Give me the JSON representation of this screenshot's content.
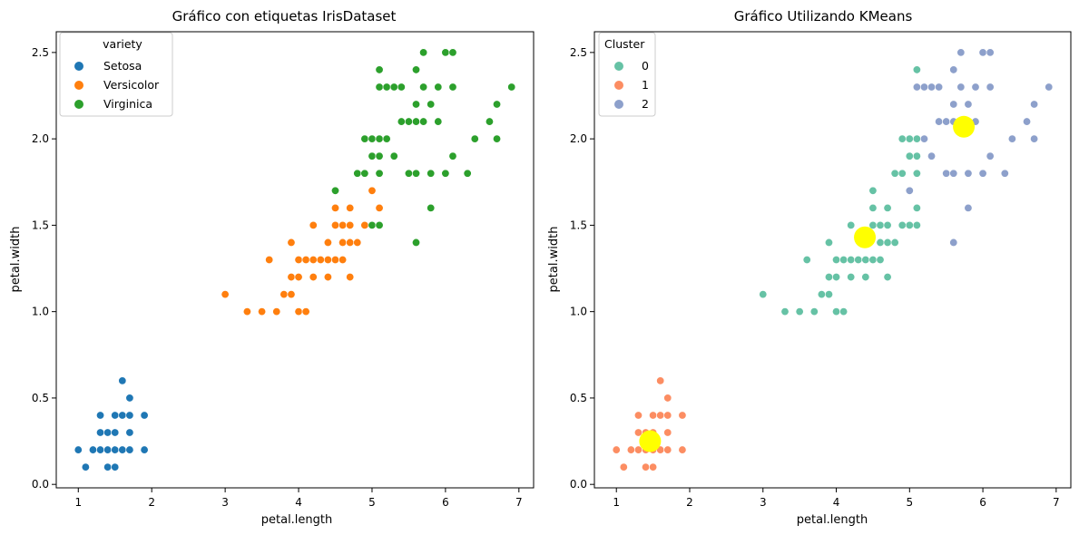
{
  "chart_data": [
    {
      "type": "scatter",
      "title": "Gráfico con etiquetas IrisDataset",
      "xlabel": "petal.length",
      "ylabel": "petal.width",
      "xlim": [
        0.7,
        7.2
      ],
      "ylim": [
        -0.02,
        2.62
      ],
      "xticks": [
        1,
        2,
        3,
        4,
        5,
        6,
        7
      ],
      "yticks": [
        0.0,
        0.5,
        1.0,
        1.5,
        2.0,
        2.5
      ],
      "xtick_labels": [
        "1",
        "2",
        "3",
        "4",
        "5",
        "6",
        "7"
      ],
      "ytick_labels": [
        "0.0",
        "0.5",
        "1.0",
        "1.5",
        "2.0",
        "2.5"
      ],
      "legend": {
        "title": "variety",
        "position": "top-left"
      },
      "series": [
        {
          "name": "Setosa",
          "color": "#1f77b4",
          "points": [
            [
              1.0,
              0.2
            ],
            [
              1.1,
              0.1
            ],
            [
              1.2,
              0.2
            ],
            [
              1.3,
              0.2
            ],
            [
              1.3,
              0.3
            ],
            [
              1.3,
              0.4
            ],
            [
              1.4,
              0.1
            ],
            [
              1.4,
              0.2
            ],
            [
              1.4,
              0.3
            ],
            [
              1.5,
              0.1
            ],
            [
              1.5,
              0.2
            ],
            [
              1.5,
              0.3
            ],
            [
              1.5,
              0.4
            ],
            [
              1.6,
              0.2
            ],
            [
              1.6,
              0.4
            ],
            [
              1.6,
              0.6
            ],
            [
              1.7,
              0.2
            ],
            [
              1.7,
              0.3
            ],
            [
              1.7,
              0.4
            ],
            [
              1.7,
              0.5
            ],
            [
              1.9,
              0.2
            ],
            [
              1.9,
              0.4
            ]
          ]
        },
        {
          "name": "Versicolor",
          "color": "#ff7f0e",
          "points": [
            [
              3.0,
              1.1
            ],
            [
              3.3,
              1.0
            ],
            [
              3.5,
              1.0
            ],
            [
              3.6,
              1.3
            ],
            [
              3.7,
              1.0
            ],
            [
              3.8,
              1.1
            ],
            [
              3.9,
              1.1
            ],
            [
              3.9,
              1.2
            ],
            [
              3.9,
              1.4
            ],
            [
              4.0,
              1.0
            ],
            [
              4.0,
              1.2
            ],
            [
              4.0,
              1.3
            ],
            [
              4.1,
              1.0
            ],
            [
              4.1,
              1.3
            ],
            [
              4.2,
              1.2
            ],
            [
              4.2,
              1.3
            ],
            [
              4.2,
              1.5
            ],
            [
              4.3,
              1.3
            ],
            [
              4.4,
              1.2
            ],
            [
              4.4,
              1.3
            ],
            [
              4.4,
              1.4
            ],
            [
              4.5,
              1.3
            ],
            [
              4.5,
              1.5
            ],
            [
              4.5,
              1.6
            ],
            [
              4.6,
              1.3
            ],
            [
              4.6,
              1.4
            ],
            [
              4.6,
              1.5
            ],
            [
              4.7,
              1.2
            ],
            [
              4.7,
              1.4
            ],
            [
              4.7,
              1.5
            ],
            [
              4.7,
              1.6
            ],
            [
              4.8,
              1.4
            ],
            [
              4.8,
              1.8
            ],
            [
              4.9,
              1.5
            ],
            [
              5.0,
              1.7
            ],
            [
              5.1,
              1.6
            ]
          ]
        },
        {
          "name": "Virginica",
          "color": "#2ca02c",
          "points": [
            [
              4.5,
              1.7
            ],
            [
              4.8,
              1.8
            ],
            [
              4.9,
              1.8
            ],
            [
              4.9,
              2.0
            ],
            [
              5.0,
              1.5
            ],
            [
              5.0,
              1.9
            ],
            [
              5.0,
              2.0
            ],
            [
              5.1,
              1.5
            ],
            [
              5.1,
              1.8
            ],
            [
              5.1,
              1.9
            ],
            [
              5.1,
              2.0
            ],
            [
              5.1,
              2.3
            ],
            [
              5.1,
              2.4
            ],
            [
              5.2,
              2.0
            ],
            [
              5.2,
              2.3
            ],
            [
              5.3,
              1.9
            ],
            [
              5.3,
              2.3
            ],
            [
              5.4,
              2.1
            ],
            [
              5.4,
              2.3
            ],
            [
              5.5,
              1.8
            ],
            [
              5.5,
              2.1
            ],
            [
              5.6,
              1.4
            ],
            [
              5.6,
              1.8
            ],
            [
              5.6,
              2.1
            ],
            [
              5.6,
              2.2
            ],
            [
              5.6,
              2.4
            ],
            [
              5.7,
              2.1
            ],
            [
              5.7,
              2.3
            ],
            [
              5.7,
              2.5
            ],
            [
              5.8,
              1.6
            ],
            [
              5.8,
              1.8
            ],
            [
              5.8,
              2.2
            ],
            [
              5.9,
              2.1
            ],
            [
              5.9,
              2.3
            ],
            [
              6.0,
              1.8
            ],
            [
              6.0,
              2.5
            ],
            [
              6.1,
              1.9
            ],
            [
              6.1,
              2.3
            ],
            [
              6.1,
              2.5
            ],
            [
              6.3,
              1.8
            ],
            [
              6.4,
              2.0
            ],
            [
              6.6,
              2.1
            ],
            [
              6.7,
              2.0
            ],
            [
              6.7,
              2.2
            ],
            [
              6.9,
              2.3
            ]
          ]
        }
      ]
    },
    {
      "type": "scatter",
      "title": "Gráfico Utilizando KMeans",
      "xlabel": "petal.length",
      "ylabel": "petal.width",
      "xlim": [
        0.7,
        7.2
      ],
      "ylim": [
        -0.02,
        2.62
      ],
      "xticks": [
        1,
        2,
        3,
        4,
        5,
        6,
        7
      ],
      "yticks": [
        0.0,
        0.5,
        1.0,
        1.5,
        2.0,
        2.5
      ],
      "xtick_labels": [
        "1",
        "2",
        "3",
        "4",
        "5",
        "6",
        "7"
      ],
      "ytick_labels": [
        "0.0",
        "0.5",
        "1.0",
        "1.5",
        "2.0",
        "2.5"
      ],
      "legend": {
        "title": "Cluster",
        "position": "top-left"
      },
      "series": [
        {
          "name": "0",
          "color": "#66c2a5",
          "points": [
            [
              3.0,
              1.1
            ],
            [
              3.3,
              1.0
            ],
            [
              3.5,
              1.0
            ],
            [
              3.6,
              1.3
            ],
            [
              3.7,
              1.0
            ],
            [
              3.8,
              1.1
            ],
            [
              3.9,
              1.1
            ],
            [
              3.9,
              1.2
            ],
            [
              3.9,
              1.4
            ],
            [
              4.0,
              1.0
            ],
            [
              4.0,
              1.2
            ],
            [
              4.0,
              1.3
            ],
            [
              4.1,
              1.0
            ],
            [
              4.1,
              1.3
            ],
            [
              4.2,
              1.2
            ],
            [
              4.2,
              1.3
            ],
            [
              4.2,
              1.5
            ],
            [
              4.3,
              1.3
            ],
            [
              4.4,
              1.2
            ],
            [
              4.4,
              1.3
            ],
            [
              4.4,
              1.4
            ],
            [
              4.5,
              1.3
            ],
            [
              4.5,
              1.5
            ],
            [
              4.5,
              1.6
            ],
            [
              4.5,
              1.7
            ],
            [
              4.6,
              1.3
            ],
            [
              4.6,
              1.4
            ],
            [
              4.6,
              1.5
            ],
            [
              4.7,
              1.2
            ],
            [
              4.7,
              1.4
            ],
            [
              4.7,
              1.5
            ],
            [
              4.7,
              1.6
            ],
            [
              4.8,
              1.4
            ],
            [
              4.8,
              1.8
            ],
            [
              4.9,
              1.5
            ],
            [
              4.9,
              1.8
            ],
            [
              4.9,
              2.0
            ],
            [
              5.0,
              1.5
            ],
            [
              5.0,
              1.9
            ],
            [
              5.0,
              2.0
            ],
            [
              5.1,
              1.5
            ],
            [
              5.1,
              1.6
            ],
            [
              5.1,
              1.8
            ],
            [
              5.1,
              1.9
            ],
            [
              5.1,
              2.0
            ],
            [
              5.1,
              2.4
            ]
          ]
        },
        {
          "name": "1",
          "color": "#fc8d62",
          "points": [
            [
              1.0,
              0.2
            ],
            [
              1.1,
              0.1
            ],
            [
              1.2,
              0.2
            ],
            [
              1.3,
              0.2
            ],
            [
              1.3,
              0.3
            ],
            [
              1.3,
              0.4
            ],
            [
              1.4,
              0.1
            ],
            [
              1.4,
              0.2
            ],
            [
              1.4,
              0.3
            ],
            [
              1.5,
              0.1
            ],
            [
              1.5,
              0.2
            ],
            [
              1.5,
              0.3
            ],
            [
              1.5,
              0.4
            ],
            [
              1.6,
              0.2
            ],
            [
              1.6,
              0.4
            ],
            [
              1.6,
              0.6
            ],
            [
              1.7,
              0.2
            ],
            [
              1.7,
              0.3
            ],
            [
              1.7,
              0.4
            ],
            [
              1.7,
              0.5
            ],
            [
              1.9,
              0.2
            ],
            [
              1.9,
              0.4
            ]
          ]
        },
        {
          "name": "2",
          "color": "#8da0cb",
          "points": [
            [
              5.0,
              1.7
            ],
            [
              5.1,
              2.3
            ],
            [
              5.2,
              2.0
            ],
            [
              5.2,
              2.3
            ],
            [
              5.3,
              1.9
            ],
            [
              5.3,
              2.3
            ],
            [
              5.4,
              2.1
            ],
            [
              5.4,
              2.3
            ],
            [
              5.5,
              1.8
            ],
            [
              5.5,
              2.1
            ],
            [
              5.6,
              1.4
            ],
            [
              5.6,
              1.8
            ],
            [
              5.6,
              2.1
            ],
            [
              5.6,
              2.2
            ],
            [
              5.6,
              2.4
            ],
            [
              5.7,
              2.1
            ],
            [
              5.7,
              2.3
            ],
            [
              5.7,
              2.5
            ],
            [
              5.8,
              1.6
            ],
            [
              5.8,
              1.8
            ],
            [
              5.8,
              2.2
            ],
            [
              5.9,
              2.1
            ],
            [
              5.9,
              2.3
            ],
            [
              6.0,
              1.8
            ],
            [
              6.0,
              2.5
            ],
            [
              6.1,
              1.9
            ],
            [
              6.1,
              2.3
            ],
            [
              6.1,
              2.5
            ],
            [
              6.3,
              1.8
            ],
            [
              6.4,
              2.0
            ],
            [
              6.6,
              2.1
            ],
            [
              6.7,
              2.0
            ],
            [
              6.7,
              2.2
            ],
            [
              6.9,
              2.3
            ]
          ]
        }
      ],
      "centroids": {
        "color": "#ffff00",
        "points": [
          [
            1.46,
            0.25
          ],
          [
            4.39,
            1.43
          ],
          [
            5.74,
            2.07
          ]
        ]
      }
    }
  ]
}
